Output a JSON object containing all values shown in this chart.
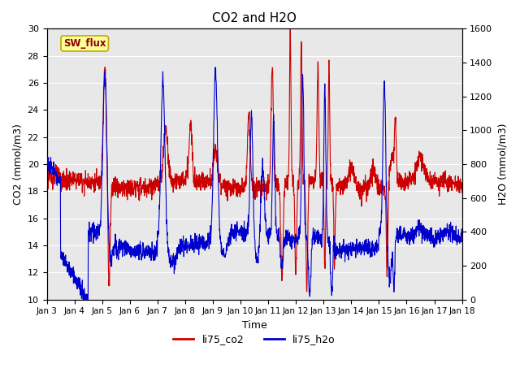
{
  "title": "CO2 and H2O",
  "xlabel": "Time",
  "ylabel_left": "CO2 (mmol/m3)",
  "ylabel_right": "H2O (mmol/m3)",
  "ylim_left": [
    10,
    30
  ],
  "ylim_right": [
    0,
    1600
  ],
  "yticks_left": [
    10,
    12,
    14,
    16,
    18,
    20,
    22,
    24,
    26,
    28,
    30
  ],
  "yticks_right": [
    0,
    200,
    400,
    600,
    800,
    1000,
    1200,
    1400,
    1600
  ],
  "color_co2": "#cc0000",
  "color_h2o": "#0000cc",
  "linewidth": 0.8,
  "bg_color": "#e8e8e8",
  "legend_items": [
    "li75_co2",
    "li75_h2o"
  ],
  "annotation_text": "SW_flux"
}
